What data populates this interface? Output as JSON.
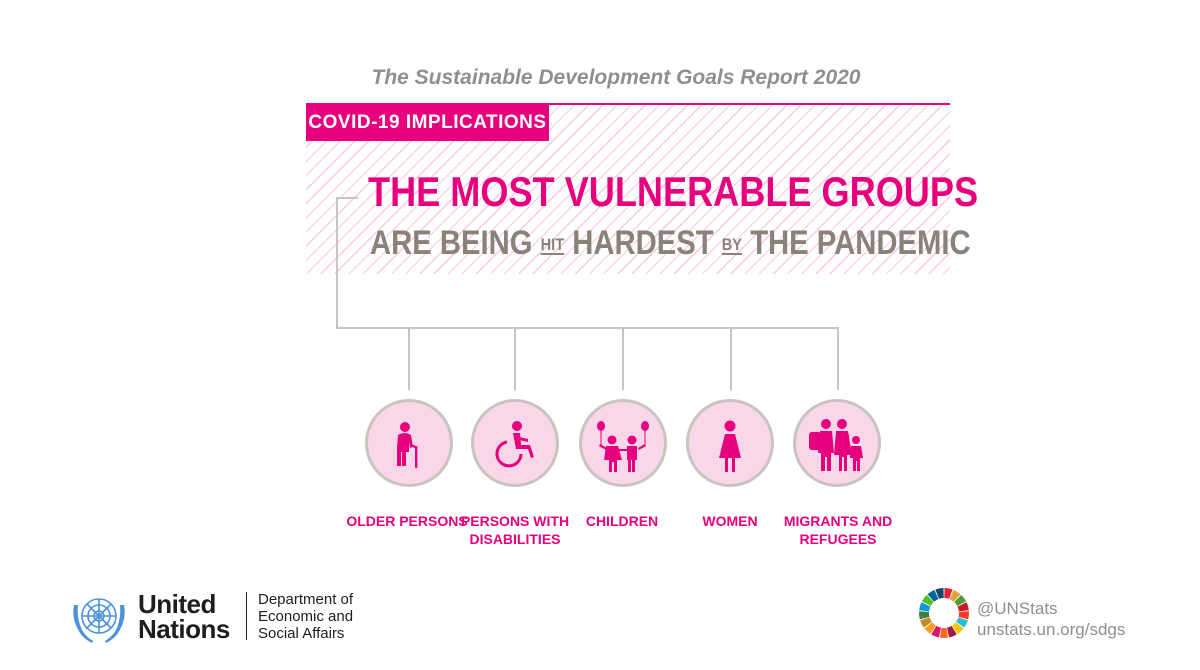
{
  "header": {
    "report_title": "The Sustainable Development Goals Report 2020",
    "tag": "COVID-19 IMPLICATIONS"
  },
  "headline": {
    "line1": "THE MOST VULNERABLE GROUPS",
    "line2_part1": "ARE BEING",
    "line2_small1": "HIT",
    "line2_part2": "HARDEST",
    "line2_small2": "BY",
    "line2_part3": "THE PANDEMIC"
  },
  "groups": [
    {
      "label": "OLDER PERSONS",
      "icon": "older-person-icon"
    },
    {
      "label": "PERSONS WITH\nDISABILITIES",
      "icon": "wheelchair-icon"
    },
    {
      "label": "CHILDREN",
      "icon": "children-icon"
    },
    {
      "label": "WOMEN",
      "icon": "woman-icon"
    },
    {
      "label": "MIGRANTS AND\nREFUGEES",
      "icon": "migrant-family-icon"
    }
  ],
  "footer": {
    "un_line1": "United",
    "un_line2": "Nations",
    "desa_line1": "Department of",
    "desa_line2": "Economic and",
    "desa_line3": "Social Affairs",
    "twitter": "@UNStats",
    "url": "unstats.un.org/sdgs"
  },
  "colors": {
    "accent_pink": "#e6007e",
    "circle_fill": "#f9d6e8",
    "connector_gray": "#c9c5be",
    "headline_gray": "#888278",
    "muted_text": "#8f8f8f"
  }
}
